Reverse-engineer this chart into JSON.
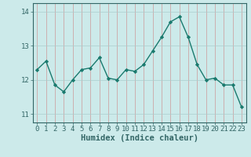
{
  "x": [
    0,
    1,
    2,
    3,
    4,
    5,
    6,
    7,
    8,
    9,
    10,
    11,
    12,
    13,
    14,
    15,
    16,
    17,
    18,
    19,
    20,
    21,
    22,
    23
  ],
  "y": [
    12.3,
    12.55,
    11.85,
    11.65,
    12.0,
    12.3,
    12.35,
    12.65,
    12.05,
    12.0,
    12.3,
    12.25,
    12.45,
    12.85,
    13.25,
    13.7,
    13.85,
    13.25,
    12.45,
    12.0,
    12.05,
    11.85,
    11.85,
    11.2
  ],
  "line_color": "#1a7a6e",
  "marker": "D",
  "marker_size": 2.2,
  "bg_color": "#cceaea",
  "grid_color": "#aacccc",
  "xlabel": "Humidex (Indice chaleur)",
  "ylim": [
    10.75,
    14.25
  ],
  "xlim": [
    -0.5,
    23.5
  ],
  "yticks": [
    11,
    12,
    13,
    14
  ],
  "xticks": [
    0,
    1,
    2,
    3,
    4,
    5,
    6,
    7,
    8,
    9,
    10,
    11,
    12,
    13,
    14,
    15,
    16,
    17,
    18,
    19,
    20,
    21,
    22,
    23
  ],
  "axis_color": "#336666",
  "xlabel_fontsize": 7.5,
  "tick_fontsize": 6.5,
  "linewidth": 1.0
}
